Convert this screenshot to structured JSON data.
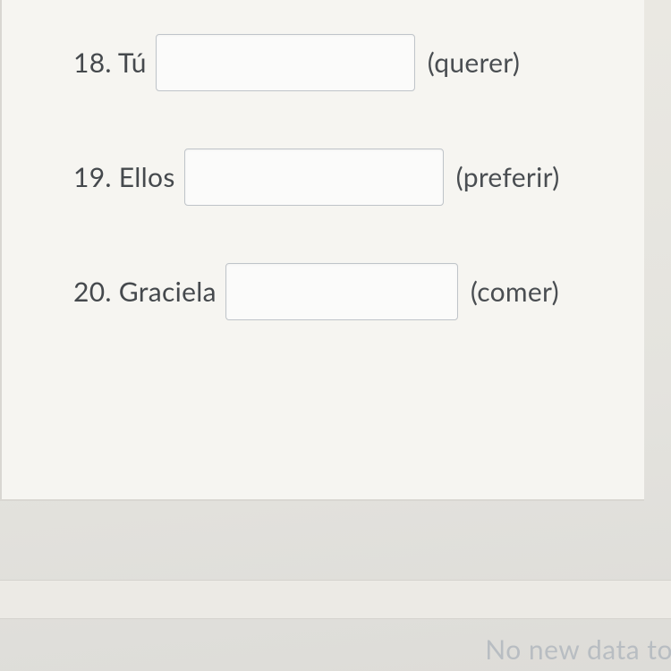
{
  "questions": [
    {
      "number": "18",
      "subject": "Tú",
      "hint": "(querer)",
      "input_width": 290
    },
    {
      "number": "19",
      "subject": "Ellos",
      "hint": "(preferir)",
      "input_width": 290
    },
    {
      "number": "20",
      "subject": "Graciela",
      "hint": "(comer)",
      "input_width": 260
    }
  ],
  "footer": {
    "status_text": "No new data to"
  },
  "colors": {
    "panel_bg": "#f6f5f1",
    "body_bg": "#e8e7e2",
    "border": "#d9d7d2",
    "input_border": "#bfc4c9",
    "text": "#45494d",
    "footer_text": "#b8bdc2"
  }
}
